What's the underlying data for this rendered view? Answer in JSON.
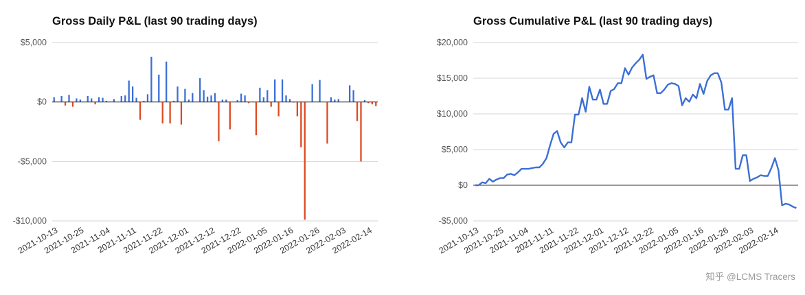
{
  "charts": [
    {
      "title": "Gross Daily P&L (last 90 trading days)",
      "chart_data": {
        "type": "bar",
        "title": "Gross Daily P&L (last 90 trading days)",
        "ylim": [
          -10000,
          5000
        ],
        "y_ticks": [
          5000,
          0,
          -5000,
          -10000
        ],
        "y_tick_labels": [
          "$5,000",
          "$0",
          "-$5,000",
          "-$10,000"
        ],
        "x_tick_labels": [
          "2021-10-13",
          "2021-10-25",
          "2021-11-04",
          "2021-11-11",
          "2021-11-22",
          "2021-12-01",
          "2021-12-12",
          "2021-12-22",
          "2022-01-05",
          "2022-01-16",
          "2022-01-26",
          "2022-02-03",
          "2022-02-14"
        ],
        "x_tick_index": [
          0,
          7,
          14,
          21,
          28,
          35,
          42,
          49,
          56,
          63,
          70,
          77,
          84
        ],
        "grid": true,
        "colors": {
          "positive": "#3b6fd6",
          "negative": "#dc4a22"
        },
        "values": [
          400,
          0,
          500,
          -300,
          600,
          -400,
          300,
          200,
          0,
          500,
          300,
          -200,
          400,
          350,
          100,
          50,
          250,
          0,
          500,
          550,
          1800,
          1300,
          350,
          -1500,
          100,
          650,
          3800,
          0,
          2300,
          -1800,
          3400,
          -1800,
          100,
          1300,
          -1900,
          1100,
          200,
          750,
          0,
          2000,
          1000,
          450,
          550,
          750,
          -3300,
          200,
          200,
          -2300,
          0,
          150,
          700,
          550,
          -100,
          0,
          -2800,
          1200,
          400,
          1000,
          -400,
          1900,
          -1200,
          1900,
          550,
          250,
          -50,
          -1200,
          -3800,
          -9900,
          0,
          1500,
          0,
          1850,
          0,
          -3500,
          400,
          200,
          250,
          0,
          0,
          1400,
          1000,
          -1600,
          -5000,
          150,
          -100,
          -200,
          -350
        ]
      }
    },
    {
      "title": "Gross Cumulative P&L (last 90 trading days)",
      "chart_data": {
        "type": "line",
        "title": "Gross Cumulative P&L (last 90 trading days)",
        "ylim": [
          -5000,
          20000
        ],
        "y_ticks": [
          20000,
          15000,
          10000,
          5000,
          0,
          -5000
        ],
        "y_tick_labels": [
          "$20,000",
          "$15,000",
          "$10,000",
          "$5,000",
          "$0",
          "-$5,000"
        ],
        "x_tick_labels": [
          "2021-10-13",
          "2021-10-25",
          "2021-11-04",
          "2021-11-11",
          "2021-11-22",
          "2021-12-01",
          "2021-12-12",
          "2021-12-22",
          "2022-01-05",
          "2022-01-16",
          "2022-01-26",
          "2022-02-03",
          "2022-02-14"
        ],
        "x_tick_index": [
          0,
          7,
          14,
          21,
          28,
          35,
          42,
          49,
          56,
          63,
          70,
          77,
          84
        ],
        "grid": true,
        "line_color": "#3b6fd6",
        "values": [
          0,
          0,
          400,
          300,
          900,
          500,
          800,
          1000,
          1000,
          1500,
          1600,
          1400,
          1800,
          2300,
          2300,
          2300,
          2400,
          2500,
          2500,
          3000,
          3800,
          5600,
          7200,
          7600,
          6000,
          5300,
          6000,
          6000,
          9900,
          9900,
          12200,
          10300,
          13800,
          12000,
          12000,
          13400,
          11400,
          11400,
          13200,
          13500,
          14300,
          14300,
          16400,
          15500,
          16500,
          17100,
          17600,
          18300,
          14900,
          15200,
          15400,
          12900,
          12900,
          13400,
          14100,
          14300,
          14200,
          13900,
          11200,
          12200,
          11700,
          12700,
          12200,
          14200,
          12800,
          14600,
          15400,
          15700,
          15700,
          14400,
          10600,
          10600,
          12200,
          2300,
          2300,
          4200,
          4200,
          600,
          900,
          1100,
          1400,
          1300,
          1300,
          2400,
          3800,
          2100,
          -2800,
          -2600,
          -2700,
          -3000,
          -3200
        ]
      }
    }
  ],
  "watermark": "知乎 @LCMS Tracers"
}
